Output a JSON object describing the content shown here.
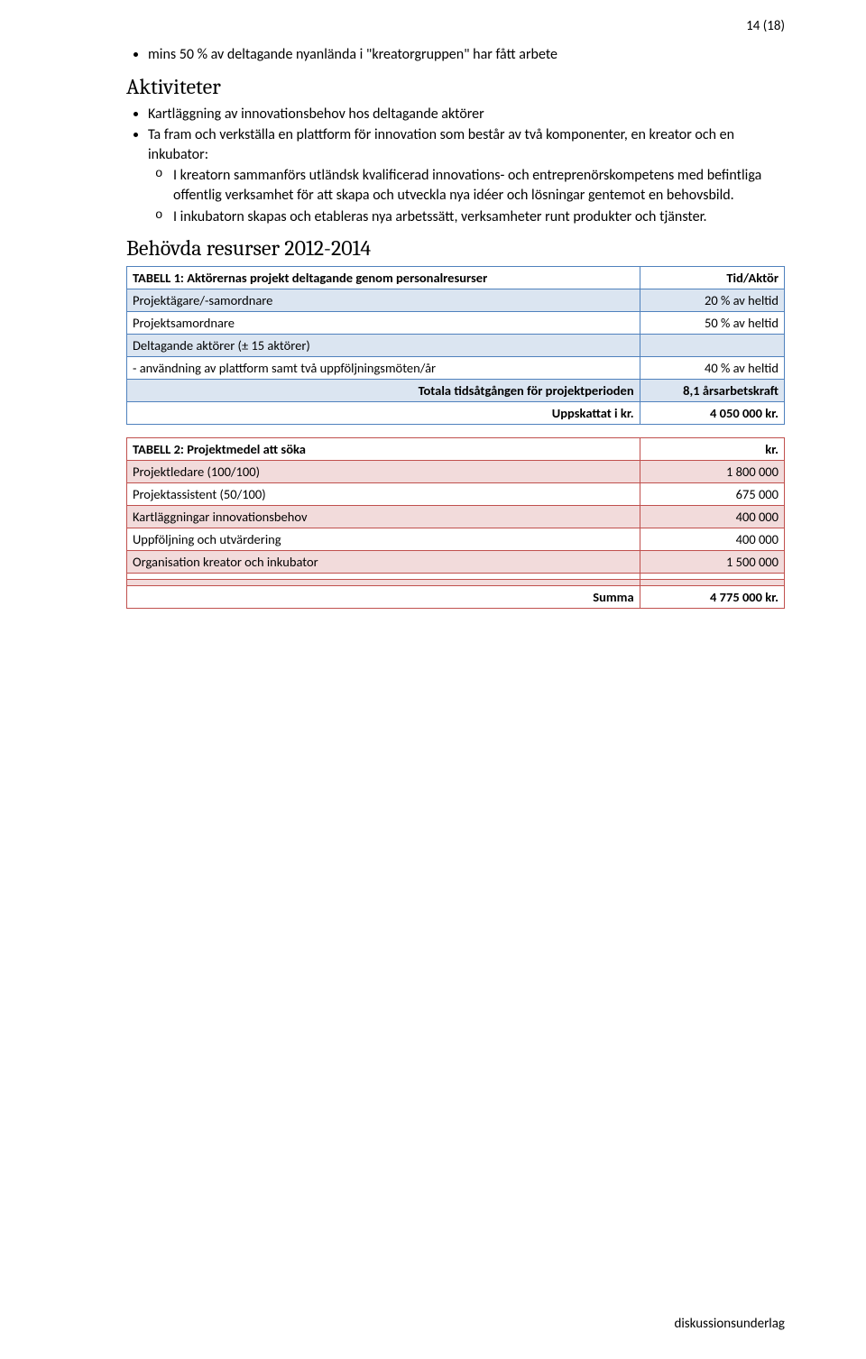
{
  "pageNumber": "14 (18)",
  "footer": "diskussionsunderlag",
  "bullet1": "mins 50 % av deltagande nyanlända i \"kreatorgruppen\" har fått arbete",
  "headingAktiviteter": "Aktiviteter",
  "bullet2": "Kartläggning av innovationsbehov hos deltagande aktörer",
  "bullet3": "Ta fram och verkställa en plattform för innovation som består av två komponenter, en kreator och en inkubator:",
  "sub1": "I kreatorn sammanförs utländsk kvalificerad innovations- och entreprenörskompetens med befintliga offentlig verksamhet för att skapa och utveckla nya idéer och lösningar gentemot en behovsbild.",
  "sub2": "I inkubatorn skapas och etableras nya arbetssätt, verksamheter runt produkter och tjänster.",
  "headingResurser": "Behövda resurser 2012-2014",
  "table1": {
    "headerLabel": "TABELL 1: Aktörernas projekt deltagande genom personalresurser",
    "headerValue": "Tid/Aktör",
    "rows": [
      {
        "label": "Projektägare/-samordnare",
        "value": "20 % av heltid",
        "alt": true
      },
      {
        "label": "Projektsamordnare",
        "value": "50 % av heltid",
        "alt": false
      },
      {
        "label": "Deltagande aktörer (± 15 aktörer)",
        "value": "",
        "alt": true
      },
      {
        "label": "- användning av plattform samt två uppföljningsmöten/år",
        "value": "40 % av heltid",
        "alt": false
      },
      {
        "label": "Totala tidsåtgången för projektperioden",
        "value": "8,1 årsarbetskraft",
        "alt": true,
        "bold": true,
        "rightLabel": true
      },
      {
        "label": "Uppskattat i kr.",
        "value": "4 050 000 kr.",
        "alt": false,
        "bold": true,
        "rightLabel": true
      }
    ]
  },
  "table2": {
    "headerLabel": "TABELL 2: Projektmedel att söka",
    "headerValue": "kr.",
    "rows": [
      {
        "label": "Projektledare (100/100)",
        "value": "1 800 000",
        "alt": true
      },
      {
        "label": "Projektassistent (50/100)",
        "value": "675 000",
        "alt": false
      },
      {
        "label": "Kartläggningar innovationsbehov",
        "value": "400 000",
        "alt": true
      },
      {
        "label": "Uppföljning och utvärdering",
        "value": "400 000",
        "alt": false
      },
      {
        "label": "Organisation kreator och inkubator",
        "value": "1 500 000",
        "alt": true
      },
      {
        "label": "",
        "value": "",
        "alt": false
      },
      {
        "label": "",
        "value": "",
        "alt": true
      },
      {
        "label": "Summa",
        "value": "4 775 000 kr.",
        "alt": false,
        "bold": true,
        "rightLabel": true
      }
    ]
  }
}
